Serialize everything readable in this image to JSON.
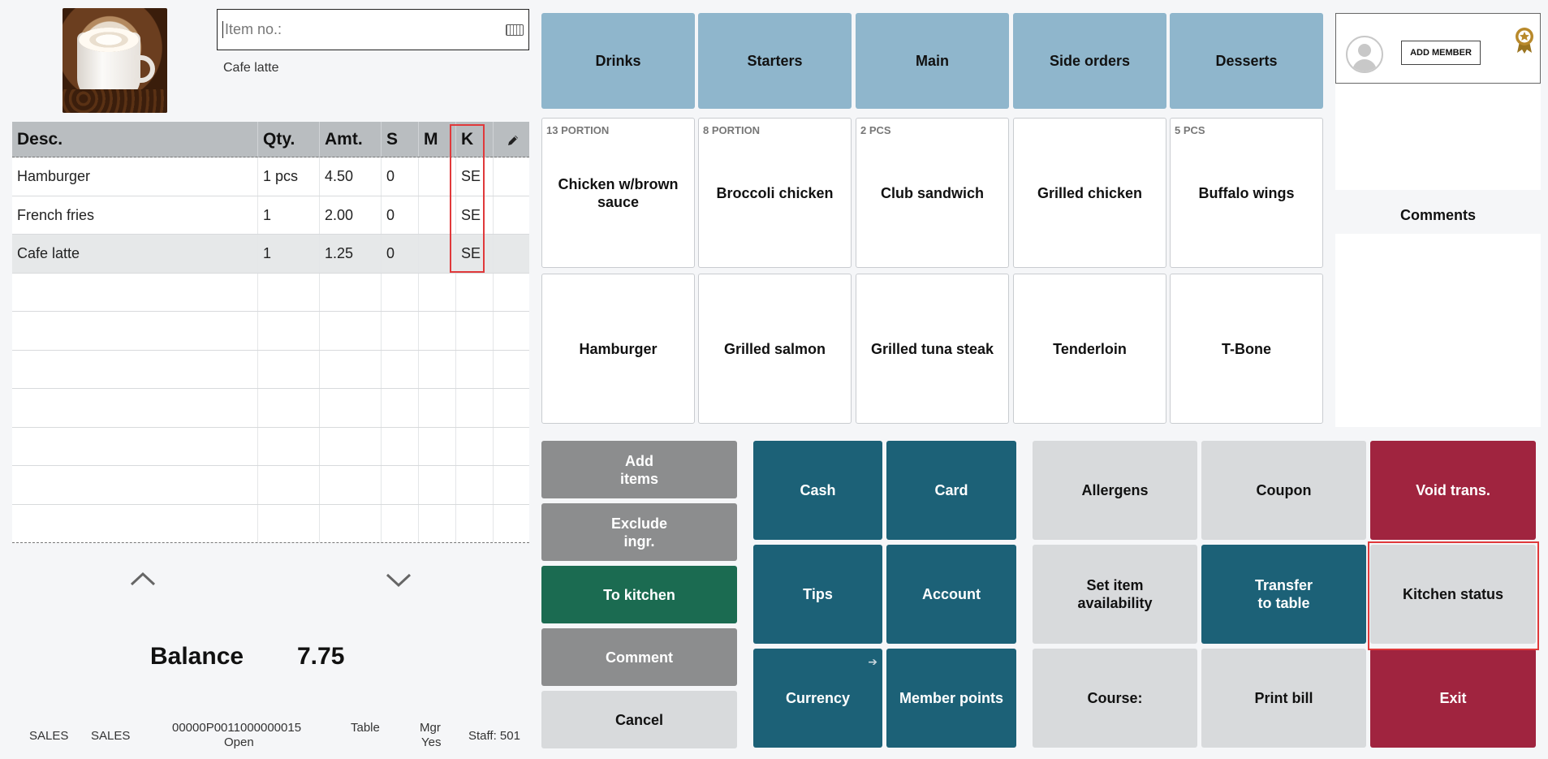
{
  "item_input": {
    "placeholder": "Item no.:"
  },
  "selected_item_name": "Cafe latte",
  "order_table": {
    "headers": {
      "desc": "Desc.",
      "qty": "Qty.",
      "amt": "Amt.",
      "s": "S",
      "m": "M",
      "k": "K"
    },
    "rows": [
      {
        "desc": "Hamburger",
        "qty": "1 pcs",
        "amt": "4.50",
        "s": "0",
        "m": "",
        "k": "SE"
      },
      {
        "desc": "French fries",
        "qty": "1",
        "amt": "2.00",
        "s": "0",
        "m": "",
        "k": "SE"
      },
      {
        "desc": "Cafe latte",
        "qty": "1",
        "amt": "1.25",
        "s": "0",
        "m": "",
        "k": "SE"
      }
    ]
  },
  "balance": {
    "label": "Balance",
    "value": "7.75"
  },
  "status_bar": {
    "mode1": "SALES",
    "mode2": "SALES",
    "transaction_id": "00000P0011000000015",
    "transaction_state": "Open",
    "table": "Table",
    "mgr_label": "Mgr",
    "mgr_value": "Yes",
    "staff": "Staff: 501"
  },
  "categories": [
    "Drinks",
    "Starters",
    "Main",
    "Side orders",
    "Desserts"
  ],
  "products": [
    {
      "name": "Chicken w/brown sauce",
      "badge": "13 PORTION"
    },
    {
      "name": "Broccoli chicken",
      "badge": "8 PORTION"
    },
    {
      "name": "Club sandwich",
      "badge": "2 PCS"
    },
    {
      "name": "Grilled chicken",
      "badge": ""
    },
    {
      "name": "Buffalo wings",
      "badge": "5 PCS"
    },
    {
      "name": "Hamburger",
      "badge": ""
    },
    {
      "name": "Grilled salmon",
      "badge": ""
    },
    {
      "name": "Grilled tuna steak",
      "badge": ""
    },
    {
      "name": "Tenderloin",
      "badge": ""
    },
    {
      "name": "T-Bone",
      "badge": ""
    }
  ],
  "actions": {
    "add_items_line1": "Add",
    "add_items_line2": "items",
    "exclude_line1": "Exclude",
    "exclude_line2": "ingr.",
    "to_kitchen": "To kitchen",
    "comment": "Comment",
    "cancel": "Cancel",
    "cash": "Cash",
    "card": "Card",
    "tips": "Tips",
    "account": "Account",
    "currency": "Currency",
    "member_points": "Member points",
    "allergens": "Allergens",
    "coupon": "Coupon",
    "void_trans": "Void trans.",
    "set_item_line1": "Set item",
    "set_item_line2": "availability",
    "transfer_line1": "Transfer",
    "transfer_line2": "to table",
    "kitchen_status": "Kitchen status",
    "course": "Course:",
    "print_bill": "Print bill",
    "exit": "Exit"
  },
  "member": {
    "add_member": "ADD MEMBER"
  },
  "comments": {
    "title": "Comments"
  },
  "colors": {
    "category": "#8fb6cc",
    "teal": "#1c6177",
    "maroon": "#a0243f",
    "green": "#1b6b51",
    "grey": "#8c8d8e",
    "highlight": "#e0393b"
  },
  "icons": [
    "keyboard-icon",
    "pencil-icon",
    "chevron-up-icon",
    "chevron-down-icon",
    "arrow-right-icon",
    "avatar-icon",
    "award-icon"
  ]
}
